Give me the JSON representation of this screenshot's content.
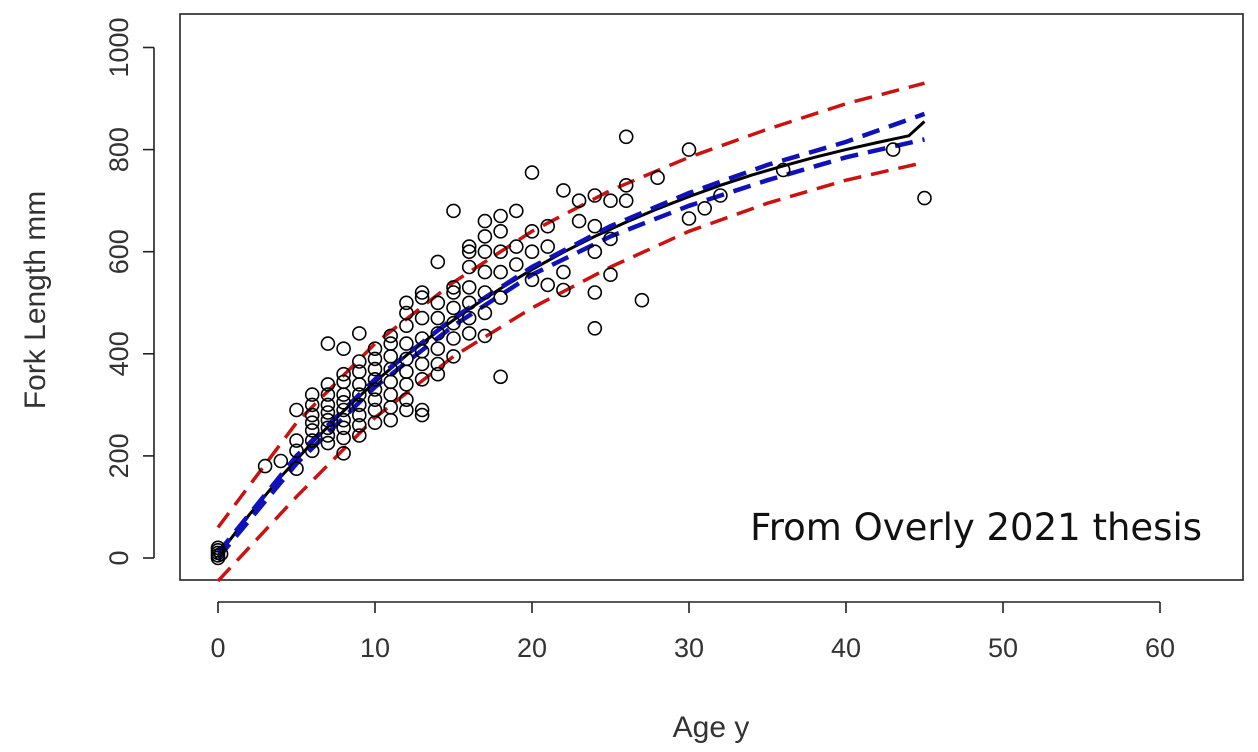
{
  "chart_data": {
    "type": "scatter",
    "title": "",
    "xlabel": "Age y",
    "ylabel": "Fork Length mm",
    "xlim": [
      -2,
      66
    ],
    "ylim": [
      -45,
      1010
    ],
    "xticks": [
      0,
      10,
      20,
      30,
      40,
      50,
      60
    ],
    "yticks": [
      0,
      200,
      400,
      600,
      800,
      1000
    ],
    "xtick_labels": [
      "0",
      "10",
      "20",
      "30",
      "40",
      "50",
      "60"
    ],
    "ytick_labels": [
      "0",
      "200",
      "400",
      "600",
      "800",
      "1000"
    ],
    "grid": false,
    "annotation": "From Overly 2021 thesis",
    "scatter_series": {
      "marker": "open-circle",
      "color": "#000000",
      "points": [
        [
          0,
          0
        ],
        [
          0,
          5
        ],
        [
          0,
          10
        ],
        [
          0,
          15
        ],
        [
          0,
          20
        ],
        [
          0.2,
          8
        ],
        [
          3,
          180
        ],
        [
          4,
          190
        ],
        [
          5,
          175
        ],
        [
          5,
          210
        ],
        [
          5,
          230
        ],
        [
          5,
          290
        ],
        [
          6,
          210
        ],
        [
          6,
          230
        ],
        [
          6,
          250
        ],
        [
          6,
          265
        ],
        [
          6,
          280
        ],
        [
          6,
          300
        ],
        [
          6,
          320
        ],
        [
          7,
          225
        ],
        [
          7,
          240
        ],
        [
          7,
          255
        ],
        [
          7,
          270
        ],
        [
          7,
          285
        ],
        [
          7,
          300
        ],
        [
          7,
          320
        ],
        [
          7,
          340
        ],
        [
          7,
          420
        ],
        [
          8,
          205
        ],
        [
          8,
          235
        ],
        [
          8,
          255
        ],
        [
          8,
          270
        ],
        [
          8,
          290
        ],
        [
          8,
          305
        ],
        [
          8,
          320
        ],
        [
          8,
          345
        ],
        [
          8,
          360
        ],
        [
          8,
          410
        ],
        [
          9,
          240
        ],
        [
          9,
          260
        ],
        [
          9,
          280
        ],
        [
          9,
          300
        ],
        [
          9,
          320
        ],
        [
          9,
          340
        ],
        [
          9,
          365
        ],
        [
          9,
          385
        ],
        [
          9,
          440
        ],
        [
          10,
          265
        ],
        [
          10,
          290
        ],
        [
          10,
          310
        ],
        [
          10,
          330
        ],
        [
          10,
          350
        ],
        [
          10,
          370
        ],
        [
          10,
          390
        ],
        [
          10,
          410
        ],
        [
          11,
          270
        ],
        [
          11,
          295
        ],
        [
          11,
          320
        ],
        [
          11,
          345
        ],
        [
          11,
          370
        ],
        [
          11,
          395
        ],
        [
          11,
          420
        ],
        [
          11,
          435
        ],
        [
          12,
          290
        ],
        [
          12,
          310
        ],
        [
          12,
          340
        ],
        [
          12,
          365
        ],
        [
          12,
          390
        ],
        [
          12,
          420
        ],
        [
          12,
          455
        ],
        [
          12,
          480
        ],
        [
          12,
          500
        ],
        [
          13,
          280
        ],
        [
          13,
          290
        ],
        [
          13,
          350
        ],
        [
          13,
          380
        ],
        [
          13,
          405
        ],
        [
          13,
          430
        ],
        [
          13,
          470
        ],
        [
          13,
          510
        ],
        [
          13,
          520
        ],
        [
          14,
          360
        ],
        [
          14,
          380
        ],
        [
          14,
          410
        ],
        [
          14,
          440
        ],
        [
          14,
          470
        ],
        [
          14,
          500
        ],
        [
          14,
          580
        ],
        [
          15,
          395
        ],
        [
          15,
          430
        ],
        [
          15,
          460
        ],
        [
          15,
          490
        ],
        [
          15,
          520
        ],
        [
          15,
          530
        ],
        [
          15,
          680
        ],
        [
          16,
          440
        ],
        [
          16,
          470
        ],
        [
          16,
          500
        ],
        [
          16,
          530
        ],
        [
          16,
          570
        ],
        [
          16,
          600
        ],
        [
          16,
          610
        ],
        [
          17,
          435
        ],
        [
          17,
          480
        ],
        [
          17,
          520
        ],
        [
          17,
          560
        ],
        [
          17,
          600
        ],
        [
          17,
          630
        ],
        [
          17,
          660
        ],
        [
          18,
          355
        ],
        [
          18,
          510
        ],
        [
          18,
          560
        ],
        [
          18,
          600
        ],
        [
          18,
          640
        ],
        [
          18,
          670
        ],
        [
          19,
          575
        ],
        [
          19,
          610
        ],
        [
          19,
          680
        ],
        [
          20,
          545
        ],
        [
          20,
          600
        ],
        [
          20,
          640
        ],
        [
          20,
          755
        ],
        [
          21,
          535
        ],
        [
          21,
          610
        ],
        [
          21,
          650
        ],
        [
          22,
          525
        ],
        [
          22,
          560
        ],
        [
          22,
          720
        ],
        [
          23,
          660
        ],
        [
          23,
          700
        ],
        [
          24,
          450
        ],
        [
          24,
          520
        ],
        [
          24,
          600
        ],
        [
          24,
          650
        ],
        [
          24,
          710
        ],
        [
          25,
          555
        ],
        [
          25,
          625
        ],
        [
          25,
          700
        ],
        [
          26,
          700
        ],
        [
          26,
          730
        ],
        [
          26,
          825
        ],
        [
          27,
          505
        ],
        [
          28,
          745
        ],
        [
          30,
          665
        ],
        [
          30,
          800
        ],
        [
          31,
          685
        ],
        [
          32,
          710
        ],
        [
          36,
          760
        ],
        [
          43,
          800
        ],
        [
          45,
          705
        ]
      ]
    },
    "series": [
      {
        "color": "#000000",
        "style": "solid",
        "values": [
          [
            0,
            5
          ],
          [
            2,
            85
          ],
          [
            4,
            159
          ],
          [
            6,
            226
          ],
          [
            8,
            288
          ],
          [
            10,
            345
          ],
          [
            12,
            397
          ],
          [
            14,
            444
          ],
          [
            16,
            488
          ],
          [
            18,
            528
          ],
          [
            20,
            565
          ],
          [
            22,
            599
          ],
          [
            24,
            630
          ],
          [
            26,
            658
          ],
          [
            28,
            684
          ],
          [
            30,
            708
          ],
          [
            32,
            730
          ],
          [
            34,
            750
          ],
          [
            36,
            768
          ],
          [
            38,
            785
          ],
          [
            40,
            800
          ],
          [
            42,
            814
          ],
          [
            44,
            827
          ],
          [
            45,
            855
          ]
        ]
      },
      {
        "color": "#1111bb",
        "style": "dashed",
        "values": [
          [
            0,
            10
          ],
          [
            5,
            200
          ],
          [
            10,
            350
          ],
          [
            15,
            470
          ],
          [
            20,
            570
          ],
          [
            25,
            650
          ],
          [
            30,
            715
          ],
          [
            35,
            770
          ],
          [
            40,
            815
          ],
          [
            45,
            870
          ]
        ]
      },
      {
        "color": "#1111bb",
        "style": "dashed",
        "values": [
          [
            0,
            0
          ],
          [
            5,
            185
          ],
          [
            10,
            335
          ],
          [
            15,
            455
          ],
          [
            20,
            555
          ],
          [
            25,
            630
          ],
          [
            30,
            690
          ],
          [
            35,
            740
          ],
          [
            40,
            785
          ],
          [
            45,
            820
          ]
        ]
      },
      {
        "color": "#cc1111",
        "style": "dashed",
        "values": [
          [
            0,
            60
          ],
          [
            5,
            265
          ],
          [
            10,
            420
          ],
          [
            15,
            540
          ],
          [
            20,
            640
          ],
          [
            25,
            720
          ],
          [
            30,
            785
          ],
          [
            35,
            840
          ],
          [
            40,
            890
          ],
          [
            45,
            930
          ]
        ]
      },
      {
        "color": "#cc1111",
        "style": "dashed",
        "values": [
          [
            0,
            -45
          ],
          [
            5,
            120
          ],
          [
            10,
            275
          ],
          [
            15,
            395
          ],
          [
            20,
            490
          ],
          [
            25,
            570
          ],
          [
            30,
            640
          ],
          [
            35,
            695
          ],
          [
            40,
            740
          ],
          [
            45,
            775
          ]
        ]
      }
    ]
  }
}
